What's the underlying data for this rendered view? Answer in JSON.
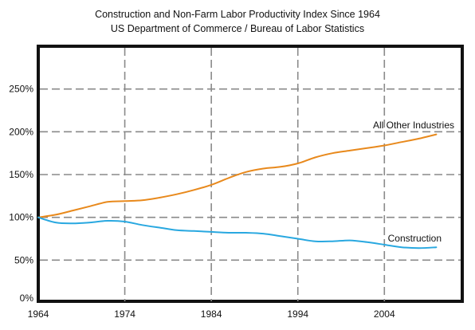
{
  "chart_data": {
    "type": "line",
    "title": "Construction and Non-Farm Labor Productivity Index Since 1964",
    "subtitle": "US Department of Commerce / Bureau of Labor Statistics",
    "xlabel": "",
    "ylabel": "",
    "xlim": [
      1964,
      2013
    ],
    "ylim": [
      0,
      300
    ],
    "x_ticks": [
      1964,
      1974,
      1984,
      1994,
      2004
    ],
    "y_ticks": [
      0,
      50,
      100,
      150,
      200,
      250
    ],
    "y_tick_labels": [
      "0%",
      "50%",
      "100%",
      "150%",
      "200%",
      "250%"
    ],
    "grid": true,
    "legend": "none (series labelled directly on the plot)",
    "series": [
      {
        "name": "All Other Industries",
        "color": "#e8891c",
        "x": [
          1964,
          1966,
          1968,
          1970,
          1972,
          1974,
          1976,
          1978,
          1980,
          1982,
          1984,
          1986,
          1988,
          1990,
          1992,
          1994,
          1996,
          1998,
          2000,
          2002,
          2004,
          2006,
          2008,
          2010
        ],
        "values": [
          100,
          103,
          108,
          113,
          118,
          119,
          120,
          123,
          127,
          132,
          138,
          146,
          153,
          157,
          159,
          163,
          170,
          175,
          178,
          181,
          184,
          188,
          192,
          197
        ]
      },
      {
        "name": "Construction",
        "color": "#29a8e0",
        "x": [
          1964,
          1966,
          1968,
          1970,
          1972,
          1974,
          1976,
          1978,
          1980,
          1982,
          1984,
          1986,
          1988,
          1990,
          1992,
          1994,
          1996,
          1998,
          2000,
          2002,
          2004,
          2006,
          2008,
          2010
        ],
        "values": [
          100,
          94,
          93,
          94,
          96,
          95,
          91,
          88,
          85,
          84,
          83,
          82,
          82,
          81,
          78,
          75,
          72,
          72,
          73,
          71,
          68,
          65,
          64,
          65
        ]
      }
    ]
  }
}
